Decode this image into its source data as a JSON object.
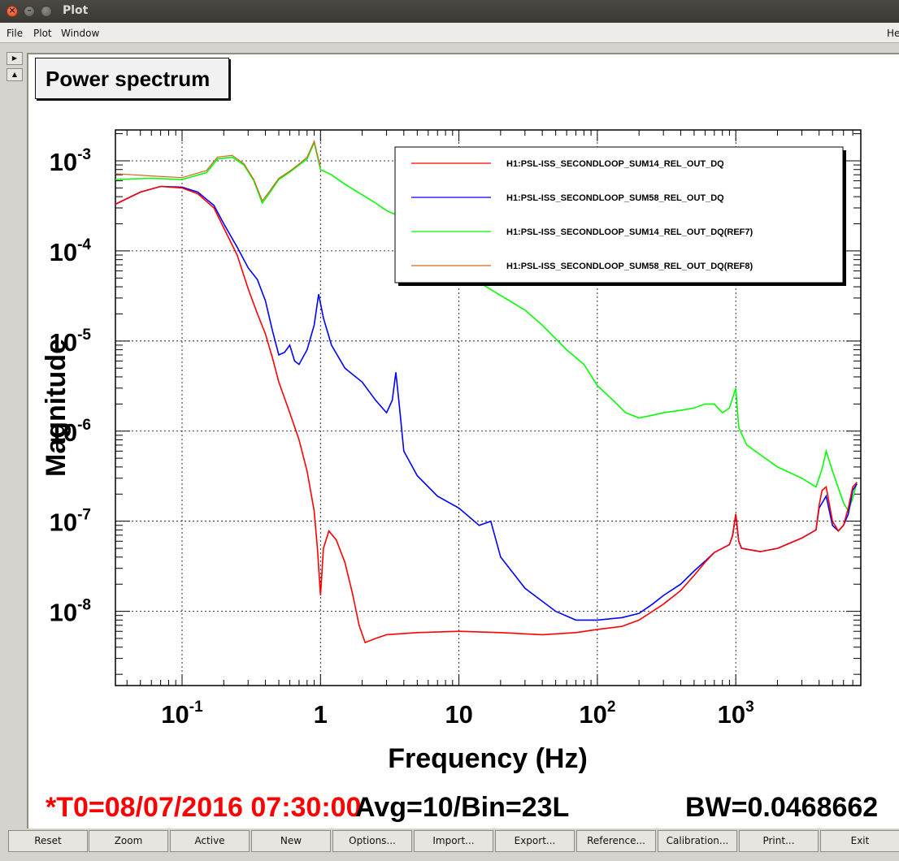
{
  "window": {
    "title": "Plot"
  },
  "menubar": {
    "file": "File",
    "plot": "Plot",
    "window": "Window",
    "help": "He"
  },
  "pad": {
    "title": "Power spectrum"
  },
  "chart_data": {
    "type": "line",
    "xlabel": "Frequency (Hz)",
    "ylabel": "Magnitude",
    "xscale": "log",
    "yscale": "log",
    "xlim": [
      0.033,
      8000
    ],
    "ylim": [
      1.5e-09,
      0.0022
    ],
    "grid": true,
    "legend_position": "top-right",
    "x_ticks": [
      {
        "v": 0.1,
        "mant": "10",
        "exp": "-1"
      },
      {
        "v": 1,
        "mant": "1",
        "exp": ""
      },
      {
        "v": 10,
        "mant": "10",
        "exp": ""
      },
      {
        "v": 100,
        "mant": "10",
        "exp": "2"
      },
      {
        "v": 1000,
        "mant": "10",
        "exp": "3"
      }
    ],
    "y_ticks": [
      {
        "v": 0.001,
        "mant": "10",
        "exp": "-3"
      },
      {
        "v": 0.0001,
        "mant": "10",
        "exp": "-4"
      },
      {
        "v": 1e-05,
        "mant": "10",
        "exp": "-5"
      },
      {
        "v": 1e-06,
        "mant": "10",
        "exp": "-6"
      },
      {
        "v": 1e-07,
        "mant": "10",
        "exp": "-7"
      },
      {
        "v": 1e-08,
        "mant": "10",
        "exp": "-8"
      }
    ],
    "series": [
      {
        "name": "H1:PSL-ISS_SECONDLOOP_SUM14_REL_OUT_DQ",
        "color": "#ff0000",
        "points": [
          [
            0.033,
            0.00033
          ],
          [
            0.05,
            0.00045
          ],
          [
            0.07,
            0.00052
          ],
          [
            0.1,
            0.0005
          ],
          [
            0.13,
            0.00043
          ],
          [
            0.17,
            0.0003
          ],
          [
            0.2,
            0.00018
          ],
          [
            0.25,
            9e-05
          ],
          [
            0.3,
            3.8e-05
          ],
          [
            0.35,
            2e-05
          ],
          [
            0.4,
            1.2e-05
          ],
          [
            0.45,
            6.5e-06
          ],
          [
            0.5,
            3.5e-06
          ],
          [
            0.6,
            1.6e-06
          ],
          [
            0.7,
            8e-07
          ],
          [
            0.8,
            3.6e-07
          ],
          [
            0.9,
            1.3e-07
          ],
          [
            0.95,
            5e-08
          ],
          [
            1.0,
            1.5e-08
          ],
          [
            1.05,
            5e-08
          ],
          [
            1.15,
            7.8e-08
          ],
          [
            1.3,
            6.2e-08
          ],
          [
            1.5,
            3.5e-08
          ],
          [
            1.7,
            1.6e-08
          ],
          [
            1.9,
            7e-09
          ],
          [
            2.1,
            4.5e-09
          ],
          [
            2.5,
            5e-09
          ],
          [
            3,
            5.5e-09
          ],
          [
            5,
            5.8e-09
          ],
          [
            10,
            6e-09
          ],
          [
            20,
            5.8e-09
          ],
          [
            40,
            5.5e-09
          ],
          [
            70,
            5.8e-09
          ],
          [
            100,
            6.3e-09
          ],
          [
            150,
            6.8e-09
          ],
          [
            200,
            8e-09
          ],
          [
            300,
            1.2e-08
          ],
          [
            400,
            1.7e-08
          ],
          [
            500,
            2.5e-08
          ],
          [
            600,
            3.5e-08
          ],
          [
            700,
            4.5e-08
          ],
          [
            800,
            5e-08
          ],
          [
            900,
            5.5e-08
          ],
          [
            950,
            7e-08
          ],
          [
            1000,
            1.2e-07
          ],
          [
            1050,
            6e-08
          ],
          [
            1100,
            5e-08
          ],
          [
            1500,
            4.6e-08
          ],
          [
            2000,
            5e-08
          ],
          [
            3000,
            6.5e-08
          ],
          [
            3800,
            8e-08
          ],
          [
            4000,
            1.5e-07
          ],
          [
            4200,
            2.2e-07
          ],
          [
            4500,
            2.4e-07
          ],
          [
            5000,
            1e-07
          ],
          [
            5500,
            7.8e-08
          ],
          [
            6000,
            9e-08
          ],
          [
            6500,
            1.4e-07
          ],
          [
            7000,
            2.4e-07
          ],
          [
            7500,
            2.7e-07
          ]
        ]
      },
      {
        "name": "H1:PSL-ISS_SECONDLOOP_SUM58_REL_OUT_DQ",
        "color": "#0000ff",
        "points": [
          [
            0.033,
            0.00033
          ],
          [
            0.05,
            0.00045
          ],
          [
            0.07,
            0.00052
          ],
          [
            0.1,
            0.00051
          ],
          [
            0.13,
            0.00045
          ],
          [
            0.17,
            0.00032
          ],
          [
            0.2,
            0.0002
          ],
          [
            0.25,
            0.00011
          ],
          [
            0.3,
            6.5e-05
          ],
          [
            0.35,
            4.8e-05
          ],
          [
            0.4,
            2.8e-05
          ],
          [
            0.45,
            1.3e-05
          ],
          [
            0.5,
            7e-06
          ],
          [
            0.55,
            7.5e-06
          ],
          [
            0.6,
            9e-06
          ],
          [
            0.65,
            6e-06
          ],
          [
            0.7,
            5.5e-06
          ],
          [
            0.8,
            8e-06
          ],
          [
            0.9,
            1.5e-05
          ],
          [
            0.97,
            3.3e-05
          ],
          [
            1.05,
            1.8e-05
          ],
          [
            1.2,
            9e-06
          ],
          [
            1.5,
            5e-06
          ],
          [
            2,
            3.5e-06
          ],
          [
            2.5,
            2.2e-06
          ],
          [
            3,
            1.6e-06
          ],
          [
            3.3,
            2.2e-06
          ],
          [
            3.5,
            4.5e-06
          ],
          [
            3.7,
            2e-06
          ],
          [
            4,
            6e-07
          ],
          [
            5,
            3.2e-07
          ],
          [
            7,
            1.9e-07
          ],
          [
            10,
            1.4e-07
          ],
          [
            14,
            9e-08
          ],
          [
            17,
            1e-07
          ],
          [
            20,
            4e-08
          ],
          [
            30,
            1.8e-08
          ],
          [
            50,
            1e-08
          ],
          [
            70,
            8e-09
          ],
          [
            100,
            8e-09
          ],
          [
            150,
            8.5e-09
          ],
          [
            200,
            9.5e-09
          ],
          [
            250,
            1.2e-08
          ],
          [
            300,
            1.5e-08
          ],
          [
            400,
            2e-08
          ],
          [
            500,
            2.8e-08
          ],
          [
            600,
            3.6e-08
          ],
          [
            700,
            4.5e-08
          ],
          [
            800,
            5e-08
          ],
          [
            900,
            5.5e-08
          ],
          [
            950,
            7e-08
          ],
          [
            1000,
            1.2e-07
          ],
          [
            1050,
            6e-08
          ],
          [
            1100,
            5e-08
          ],
          [
            1500,
            4.6e-08
          ],
          [
            2000,
            5e-08
          ],
          [
            3000,
            6.5e-08
          ],
          [
            3800,
            8e-08
          ],
          [
            4000,
            1.4e-07
          ],
          [
            4500,
            1.9e-07
          ],
          [
            5000,
            9e-08
          ],
          [
            5500,
            7.8e-08
          ],
          [
            6000,
            9e-08
          ],
          [
            6500,
            1.2e-07
          ],
          [
            7000,
            2.2e-07
          ],
          [
            7500,
            2.6e-07
          ]
        ]
      },
      {
        "name": "H1:PSL-ISS_SECONDLOOP_SUM14_REL_OUT_DQ(REF7)",
        "color": "#00ff00",
        "points": [
          [
            0.033,
            0.00062
          ],
          [
            0.06,
            0.00064
          ],
          [
            0.1,
            0.00062
          ],
          [
            0.15,
            0.00074
          ],
          [
            0.18,
            0.00105
          ],
          [
            0.23,
            0.0011
          ],
          [
            0.28,
            0.0009
          ],
          [
            0.33,
            0.0006
          ],
          [
            0.38,
            0.00034
          ],
          [
            0.42,
            0.00042
          ],
          [
            0.5,
            0.00062
          ],
          [
            0.6,
            0.00075
          ],
          [
            0.7,
            0.0009
          ],
          [
            0.8,
            0.00105
          ],
          [
            0.9,
            0.0016
          ],
          [
            1.0,
            0.0008
          ],
          [
            1.2,
            0.0007
          ],
          [
            1.5,
            0.00055
          ],
          [
            2,
            0.00042
          ],
          [
            2.5,
            0.00034
          ],
          [
            3,
            0.00028
          ],
          [
            4,
            0.00023
          ],
          [
            5,
            0.00016
          ],
          [
            7,
            8e-05
          ],
          [
            10,
            6e-05
          ],
          [
            15,
            4.2e-05
          ],
          [
            20,
            3.2e-05
          ],
          [
            30,
            2.2e-05
          ],
          [
            40,
            1.5e-05
          ],
          [
            60,
            8e-06
          ],
          [
            80,
            5.5e-06
          ],
          [
            100,
            3.2e-06
          ],
          [
            130,
            2.2e-06
          ],
          [
            160,
            1.6e-06
          ],
          [
            200,
            1.4e-06
          ],
          [
            250,
            1.5e-06
          ],
          [
            300,
            1.6e-06
          ],
          [
            400,
            1.7e-06
          ],
          [
            500,
            1.8e-06
          ],
          [
            600,
            2e-06
          ],
          [
            700,
            2e-06
          ],
          [
            800,
            1.6e-06
          ],
          [
            900,
            1.8e-06
          ],
          [
            1000,
            3e-06
          ],
          [
            1050,
            1.1e-06
          ],
          [
            1200,
            7e-07
          ],
          [
            1500,
            5.5e-07
          ],
          [
            2000,
            4e-07
          ],
          [
            3000,
            3e-07
          ],
          [
            3800,
            2.4e-07
          ],
          [
            4200,
            3.8e-07
          ],
          [
            4500,
            6e-07
          ],
          [
            5000,
            3.6e-07
          ],
          [
            6000,
            1.6e-07
          ],
          [
            6500,
            1.3e-07
          ],
          [
            7000,
            1.8e-07
          ],
          [
            7500,
            2.7e-07
          ]
        ]
      },
      {
        "name": "H1:PSL-ISS_SECONDLOOP_SUM58_REL_OUT_DQ(REF8)",
        "color": "#d2691e",
        "points": [
          [
            0.033,
            0.00072
          ],
          [
            0.06,
            0.00068
          ],
          [
            0.1,
            0.00065
          ],
          [
            0.15,
            0.00078
          ],
          [
            0.18,
            0.0011
          ],
          [
            0.23,
            0.00115
          ],
          [
            0.28,
            0.00093
          ],
          [
            0.33,
            0.00062
          ],
          [
            0.38,
            0.00036
          ],
          [
            0.42,
            0.00044
          ],
          [
            0.5,
            0.00064
          ],
          [
            0.6,
            0.00077
          ],
          [
            0.7,
            0.00092
          ],
          [
            0.8,
            0.0011
          ],
          [
            0.9,
            0.00165
          ],
          [
            1.0,
            0.00085
          ]
        ]
      }
    ]
  },
  "status": {
    "t0": "*T0=08/07/2016 07:30:00",
    "avg": "Avg=10/Bin=23L",
    "bw": "BW=0.0468662"
  },
  "buttons": [
    "Reset",
    "Zoom",
    "Active",
    "New",
    "Options...",
    "Import...",
    "Export...",
    "Reference...",
    "Calibration...",
    "Print...",
    "Exit"
  ]
}
